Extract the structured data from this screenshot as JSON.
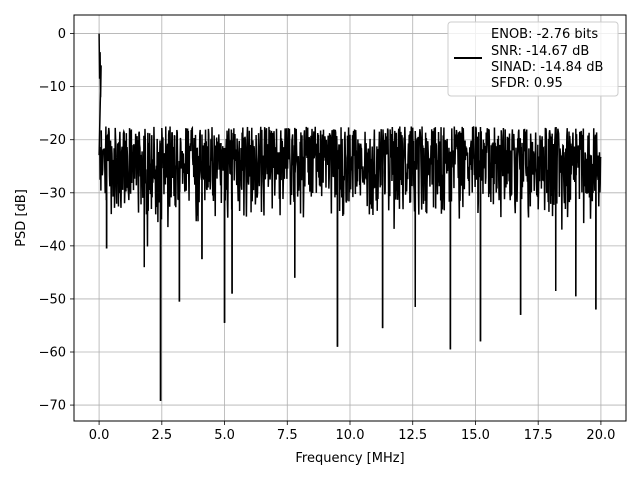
{
  "chart_data": {
    "type": "line",
    "xlabel": "Frequency [MHz]",
    "ylabel": "PSD [dB]",
    "xlim": [
      -1.0,
      21.0
    ],
    "ylim": [
      -73.0,
      3.5
    ],
    "xticks": [
      0.0,
      2.5,
      5.0,
      7.5,
      10.0,
      12.5,
      15.0,
      17.5,
      20.0
    ],
    "xtick_labels": [
      "0.0",
      "2.5",
      "5.0",
      "7.5",
      "10.0",
      "12.5",
      "15.0",
      "17.5",
      "20.0"
    ],
    "yticks": [
      0,
      -10,
      -20,
      -30,
      -40,
      -50,
      -60,
      -70
    ],
    "ytick_labels": [
      "0",
      "−10",
      "−20",
      "−30",
      "−40",
      "−50",
      "−60",
      "−70"
    ],
    "grid": true,
    "line_color": "#000000",
    "legend_position": "top-right",
    "legend_lines": [
      "ENOB: -2.76 bits",
      "SNR: -14.67 dB",
      "SINAD: -14.84 dB",
      "SFDR: 0.95"
    ],
    "series": [
      {
        "description": "noisy power spectral density, ~0 dB at DC, noise floor roughly -18 to -38 dB with deep dips",
        "x_start": 0.0,
        "x_end": 20.0,
        "upper_envelope_db": -17.5,
        "lower_envelope_db": -36.0,
        "dc_peak": {
          "x": 0.0,
          "y": 0.0
        },
        "notable_dips": [
          {
            "x": 0.3,
            "y": -40.5
          },
          {
            "x": 1.8,
            "y": -44.0
          },
          {
            "x": 2.45,
            "y": -69.2
          },
          {
            "x": 3.2,
            "y": -50.5
          },
          {
            "x": 4.1,
            "y": -42.5
          },
          {
            "x": 5.0,
            "y": -54.5
          },
          {
            "x": 5.3,
            "y": -49.0
          },
          {
            "x": 7.8,
            "y": -46.0
          },
          {
            "x": 9.5,
            "y": -59.0
          },
          {
            "x": 11.3,
            "y": -55.5
          },
          {
            "x": 12.6,
            "y": -51.5
          },
          {
            "x": 14.0,
            "y": -59.5
          },
          {
            "x": 15.2,
            "y": -58.0
          },
          {
            "x": 16.8,
            "y": -53.0
          },
          {
            "x": 18.2,
            "y": -48.5
          },
          {
            "x": 19.0,
            "y": -49.5
          },
          {
            "x": 19.8,
            "y": -52.0
          }
        ]
      }
    ]
  }
}
